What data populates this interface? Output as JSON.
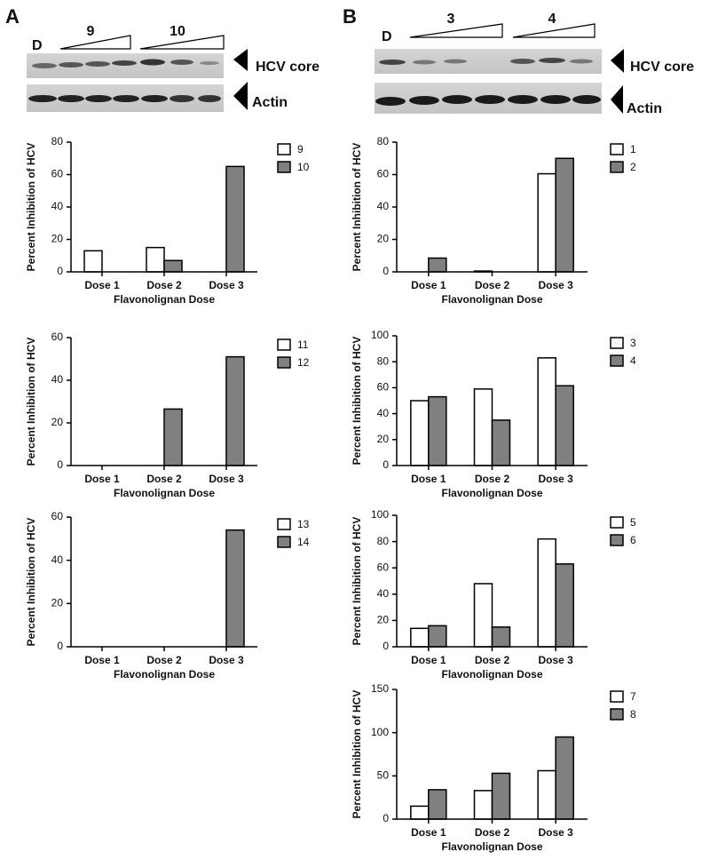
{
  "panels": [
    {
      "label": "A",
      "lane_label": "D",
      "groups": [
        "9",
        "10"
      ],
      "bands": [
        "HCV core",
        "Actin"
      ]
    },
    {
      "label": "B",
      "lane_label": "D",
      "groups": [
        "3",
        "4"
      ],
      "bands": [
        "HCV core",
        "Actin"
      ]
    }
  ],
  "chart_data": [
    {
      "type": "bar",
      "y_label": "Percent Inhibition of HCV",
      "x_label": "Flavonolignan Dose",
      "categories": [
        "Dose 1",
        "Dose 2",
        "Dose 3"
      ],
      "ylim": [
        0,
        80
      ],
      "yticks": [
        0,
        20,
        40,
        60,
        80
      ],
      "series": [
        {
          "name": "9",
          "color": "#ffffff",
          "values": [
            13,
            15,
            0
          ]
        },
        {
          "name": "10",
          "color": "#808080",
          "values": [
            0,
            7,
            65
          ]
        }
      ]
    },
    {
      "type": "bar",
      "y_label": "Percent Inhibition of HCV",
      "x_label": "Flavonolignan Dose",
      "categories": [
        "Dose 1",
        "Dose 2",
        "Dose 3"
      ],
      "ylim": [
        0,
        60
      ],
      "yticks": [
        0,
        20,
        40,
        60
      ],
      "series": [
        {
          "name": "11",
          "color": "#ffffff",
          "values": [
            0,
            0,
            0
          ]
        },
        {
          "name": "12",
          "color": "#808080",
          "values": [
            0,
            26.5,
            51
          ]
        }
      ]
    },
    {
      "type": "bar",
      "y_label": "Percent Inhibition of HCV",
      "x_label": "Flavonolignan Dose",
      "categories": [
        "Dose 1",
        "Dose 2",
        "Dose 3"
      ],
      "ylim": [
        0,
        60
      ],
      "yticks": [
        0,
        20,
        40,
        60
      ],
      "series": [
        {
          "name": "13",
          "color": "#ffffff",
          "values": [
            0,
            0,
            0
          ]
        },
        {
          "name": "14",
          "color": "#808080",
          "values": [
            0,
            0,
            54
          ]
        }
      ]
    },
    {
      "type": "bar",
      "y_label": "Percent Inhibition of HCV",
      "x_label": "Flavonolignan Dose",
      "categories": [
        "Dose 1",
        "Dose 2",
        "Dose 3"
      ],
      "ylim": [
        0,
        80
      ],
      "yticks": [
        0,
        20,
        40,
        60,
        80
      ],
      "series": [
        {
          "name": "1",
          "color": "#ffffff",
          "values": [
            0,
            0.5,
            60.5
          ]
        },
        {
          "name": "2",
          "color": "#808080",
          "values": [
            8.5,
            0,
            70
          ]
        }
      ]
    },
    {
      "type": "bar",
      "y_label": "Percent Inhibition of HCV",
      "x_label": "Flavonolignan Dose",
      "categories": [
        "Dose 1",
        "Dose 2",
        "Dose 3"
      ],
      "ylim": [
        0,
        100
      ],
      "yticks": [
        0,
        20,
        40,
        60,
        80,
        100
      ],
      "series": [
        {
          "name": "3",
          "color": "#ffffff",
          "values": [
            50,
            59,
            83
          ]
        },
        {
          "name": "4",
          "color": "#808080",
          "values": [
            53,
            35,
            61.5
          ]
        }
      ]
    },
    {
      "type": "bar",
      "y_label": "Percent Inhibition of HCV",
      "x_label": "Flavonolignan Dose",
      "categories": [
        "Dose 1",
        "Dose 2",
        "Dose 3"
      ],
      "ylim": [
        0,
        100
      ],
      "yticks": [
        0,
        20,
        40,
        60,
        80,
        100
      ],
      "series": [
        {
          "name": "5",
          "color": "#ffffff",
          "values": [
            14,
            48,
            82
          ]
        },
        {
          "name": "6",
          "color": "#808080",
          "values": [
            16,
            15,
            63
          ]
        }
      ]
    },
    {
      "type": "bar",
      "y_label": "Percent Inhibition of HCV",
      "x_label": "Flavonolignan Dose",
      "categories": [
        "Dose 1",
        "Dose 2",
        "Dose 3"
      ],
      "ylim": [
        0,
        150
      ],
      "yticks": [
        0,
        50,
        100,
        150
      ],
      "series": [
        {
          "name": "7",
          "color": "#ffffff",
          "values": [
            15,
            33,
            56
          ]
        },
        {
          "name": "8",
          "color": "#808080",
          "values": [
            34,
            53,
            95
          ]
        }
      ]
    }
  ]
}
